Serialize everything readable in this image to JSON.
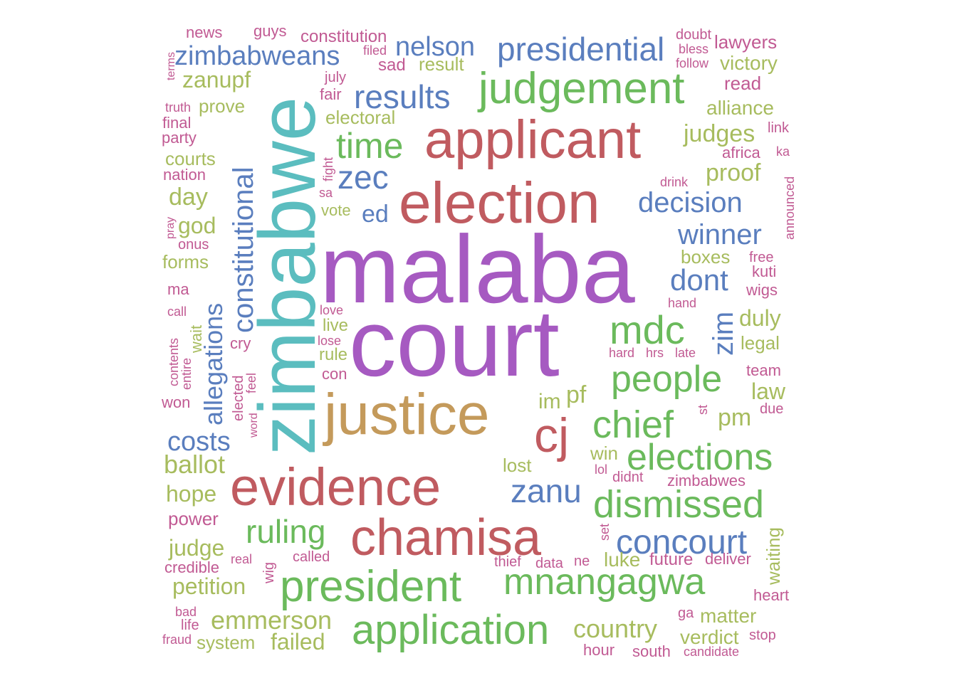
{
  "colors": {
    "purple": "#A65AC1",
    "teal": "#5BBDBF",
    "red": "#C05B60",
    "blue": "#5A7EBE",
    "green": "#6BBA5C",
    "gold": "#C49A5B",
    "olive": "#A7BC5E",
    "pink": "#C15A93"
  },
  "words": [
    {
      "text": "malaba",
      "color": "purple"
    },
    {
      "text": "court",
      "color": "purple"
    },
    {
      "text": "zimbabwe",
      "color": "teal"
    },
    {
      "text": "applicant",
      "color": "red"
    },
    {
      "text": "election",
      "color": "red"
    },
    {
      "text": "justice",
      "color": "gold"
    },
    {
      "text": "evidence",
      "color": "red"
    },
    {
      "text": "chamisa",
      "color": "red"
    },
    {
      "text": "cj",
      "color": "red"
    },
    {
      "text": "judgement",
      "color": "green"
    },
    {
      "text": "president",
      "color": "green"
    },
    {
      "text": "application",
      "color": "green"
    },
    {
      "text": "mnangagwa",
      "color": "green"
    },
    {
      "text": "presidential",
      "color": "blue"
    },
    {
      "text": "results",
      "color": "blue"
    },
    {
      "text": "zimbabweans",
      "color": "blue"
    },
    {
      "text": "nelson",
      "color": "blue"
    },
    {
      "text": "time",
      "color": "green"
    },
    {
      "text": "zec",
      "color": "blue"
    },
    {
      "text": "ed",
      "color": "blue"
    },
    {
      "text": "decision",
      "color": "blue"
    },
    {
      "text": "winner",
      "color": "blue"
    },
    {
      "text": "dont",
      "color": "blue"
    },
    {
      "text": "mdc",
      "color": "green"
    },
    {
      "text": "zim",
      "color": "blue"
    },
    {
      "text": "people",
      "color": "green"
    },
    {
      "text": "chief",
      "color": "green"
    },
    {
      "text": "elections",
      "color": "green"
    },
    {
      "text": "dismissed",
      "color": "green"
    },
    {
      "text": "concourt",
      "color": "blue"
    },
    {
      "text": "zanu",
      "color": "blue"
    },
    {
      "text": "ruling",
      "color": "green"
    },
    {
      "text": "constitutional",
      "color": "blue"
    },
    {
      "text": "allegations",
      "color": "blue"
    },
    {
      "text": "costs",
      "color": "blue"
    },
    {
      "text": "emmerson",
      "color": "olive"
    },
    {
      "text": "country",
      "color": "olive"
    },
    {
      "text": "judges",
      "color": "olive"
    },
    {
      "text": "proof",
      "color": "olive"
    },
    {
      "text": "pm",
      "color": "olive"
    },
    {
      "text": "law",
      "color": "olive"
    },
    {
      "text": "duly",
      "color": "olive"
    },
    {
      "text": "legal",
      "color": "olive"
    },
    {
      "text": "boxes",
      "color": "olive"
    },
    {
      "text": "alliance",
      "color": "olive"
    },
    {
      "text": "victory",
      "color": "olive"
    },
    {
      "text": "read",
      "color": "pink"
    },
    {
      "text": "lawyers",
      "color": "pink"
    },
    {
      "text": "doubt",
      "color": "pink"
    },
    {
      "text": "bless",
      "color": "pink"
    },
    {
      "text": "follow",
      "color": "pink"
    },
    {
      "text": "link",
      "color": "pink"
    },
    {
      "text": "africa",
      "color": "pink"
    },
    {
      "text": "ka",
      "color": "pink"
    },
    {
      "text": "announced",
      "color": "pink"
    },
    {
      "text": "drink",
      "color": "pink"
    },
    {
      "text": "free",
      "color": "pink"
    },
    {
      "text": "kuti",
      "color": "pink"
    },
    {
      "text": "wigs",
      "color": "pink"
    },
    {
      "text": "hand",
      "color": "pink"
    },
    {
      "text": "hard",
      "color": "pink"
    },
    {
      "text": "hrs",
      "color": "pink"
    },
    {
      "text": "late",
      "color": "pink"
    },
    {
      "text": "team",
      "color": "pink"
    },
    {
      "text": "due",
      "color": "pink"
    },
    {
      "text": "st",
      "color": "pink"
    },
    {
      "text": "heart",
      "color": "pink"
    },
    {
      "text": "zimbabwes",
      "color": "pink"
    },
    {
      "text": "didnt",
      "color": "pink"
    },
    {
      "text": "lol",
      "color": "pink"
    },
    {
      "text": "win",
      "color": "olive"
    },
    {
      "text": "lost",
      "color": "olive"
    },
    {
      "text": "im",
      "color": "olive"
    },
    {
      "text": "pf",
      "color": "olive"
    },
    {
      "text": "set",
      "color": "pink"
    },
    {
      "text": "waiting",
      "color": "olive"
    },
    {
      "text": "future",
      "color": "pink"
    },
    {
      "text": "luke",
      "color": "olive"
    },
    {
      "text": "deliver",
      "color": "pink"
    },
    {
      "text": "data",
      "color": "pink"
    },
    {
      "text": "ne",
      "color": "pink"
    },
    {
      "text": "thief",
      "color": "pink"
    },
    {
      "text": "matter",
      "color": "olive"
    },
    {
      "text": "verdict",
      "color": "olive"
    },
    {
      "text": "ga",
      "color": "pink"
    },
    {
      "text": "stop",
      "color": "pink"
    },
    {
      "text": "candidate",
      "color": "pink"
    },
    {
      "text": "south",
      "color": "pink"
    },
    {
      "text": "hour",
      "color": "pink"
    },
    {
      "text": "failed",
      "color": "olive"
    },
    {
      "text": "system",
      "color": "olive"
    },
    {
      "text": "fraud",
      "color": "pink"
    },
    {
      "text": "life",
      "color": "pink"
    },
    {
      "text": "bad",
      "color": "pink"
    },
    {
      "text": "petition",
      "color": "olive"
    },
    {
      "text": "credible",
      "color": "pink"
    },
    {
      "text": "judge",
      "color": "olive"
    },
    {
      "text": "real",
      "color": "pink"
    },
    {
      "text": "wig",
      "color": "pink"
    },
    {
      "text": "called",
      "color": "pink"
    },
    {
      "text": "power",
      "color": "pink"
    },
    {
      "text": "hope",
      "color": "olive"
    },
    {
      "text": "ballot",
      "color": "olive"
    },
    {
      "text": "won",
      "color": "pink"
    },
    {
      "text": "entire",
      "color": "pink"
    },
    {
      "text": "contents",
      "color": "pink"
    },
    {
      "text": "wait",
      "color": "olive"
    },
    {
      "text": "call",
      "color": "pink"
    },
    {
      "text": "ma",
      "color": "pink"
    },
    {
      "text": "forms",
      "color": "olive"
    },
    {
      "text": "onus",
      "color": "pink"
    },
    {
      "text": "pray",
      "color": "pink"
    },
    {
      "text": "god",
      "color": "olive"
    },
    {
      "text": "day",
      "color": "olive"
    },
    {
      "text": "nation",
      "color": "pink"
    },
    {
      "text": "courts",
      "color": "olive"
    },
    {
      "text": "party",
      "color": "pink"
    },
    {
      "text": "final",
      "color": "pink"
    },
    {
      "text": "truth",
      "color": "pink"
    },
    {
      "text": "terms",
      "color": "pink"
    },
    {
      "text": "news",
      "color": "pink"
    },
    {
      "text": "guys",
      "color": "pink"
    },
    {
      "text": "constitution",
      "color": "pink"
    },
    {
      "text": "filed",
      "color": "pink"
    },
    {
      "text": "sad",
      "color": "pink"
    },
    {
      "text": "result",
      "color": "olive"
    },
    {
      "text": "zanupf",
      "color": "olive"
    },
    {
      "text": "prove",
      "color": "olive"
    },
    {
      "text": "july",
      "color": "pink"
    },
    {
      "text": "fair",
      "color": "pink"
    },
    {
      "text": "electoral",
      "color": "olive"
    },
    {
      "text": "fight",
      "color": "pink"
    },
    {
      "text": "sa",
      "color": "pink"
    },
    {
      "text": "vote",
      "color": "olive"
    },
    {
      "text": "love",
      "color": "pink"
    },
    {
      "text": "live",
      "color": "olive"
    },
    {
      "text": "lose",
      "color": "pink"
    },
    {
      "text": "rule",
      "color": "olive"
    },
    {
      "text": "con",
      "color": "pink"
    },
    {
      "text": "cry",
      "color": "pink"
    },
    {
      "text": "elected",
      "color": "pink"
    },
    {
      "text": "feel",
      "color": "pink"
    },
    {
      "text": "word",
      "color": "pink"
    }
  ]
}
